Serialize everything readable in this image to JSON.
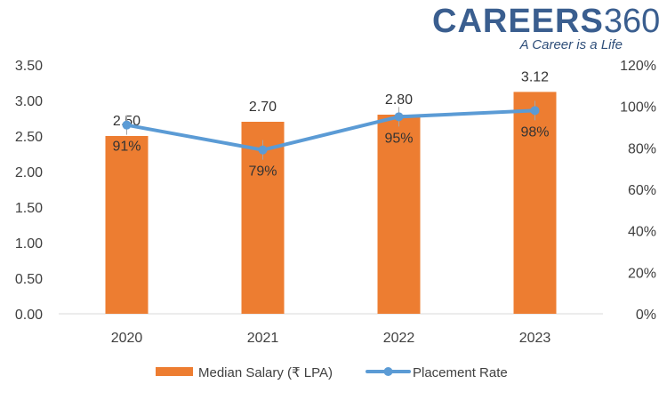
{
  "brand": {
    "logo_word": "CAREERS",
    "logo_number": "360",
    "tagline": "A Career is a Life",
    "colors": {
      "logo": "#3a5e8f"
    }
  },
  "chart_data": {
    "type": "bar",
    "categories": [
      "2020",
      "2021",
      "2022",
      "2023"
    ],
    "series": [
      {
        "name": "Median Salary (₹ LPA)",
        "type": "bar",
        "axis": "left",
        "color": "#ed7d31",
        "values": [
          2.5,
          2.7,
          2.8,
          3.12
        ],
        "labels": [
          "2.50",
          "2.70",
          "2.80",
          "3.12"
        ]
      },
      {
        "name": "Placement Rate",
        "type": "line",
        "axis": "right",
        "color": "#5b9bd5",
        "values": [
          91,
          79,
          95,
          98
        ],
        "labels": [
          "91%",
          "79%",
          "95%",
          "98%"
        ]
      }
    ],
    "y_left": {
      "min": 0,
      "max": 3.5,
      "step": 0.5,
      "ticks": [
        "0.00",
        "0.50",
        "1.00",
        "1.50",
        "2.00",
        "2.50",
        "3.00",
        "3.50"
      ]
    },
    "y_right": {
      "min": 0,
      "max": 120,
      "step": 20,
      "ticks": [
        "0%",
        "20%",
        "40%",
        "60%",
        "80%",
        "100%",
        "120%"
      ]
    },
    "grid": false,
    "legend": "bottom-center"
  }
}
